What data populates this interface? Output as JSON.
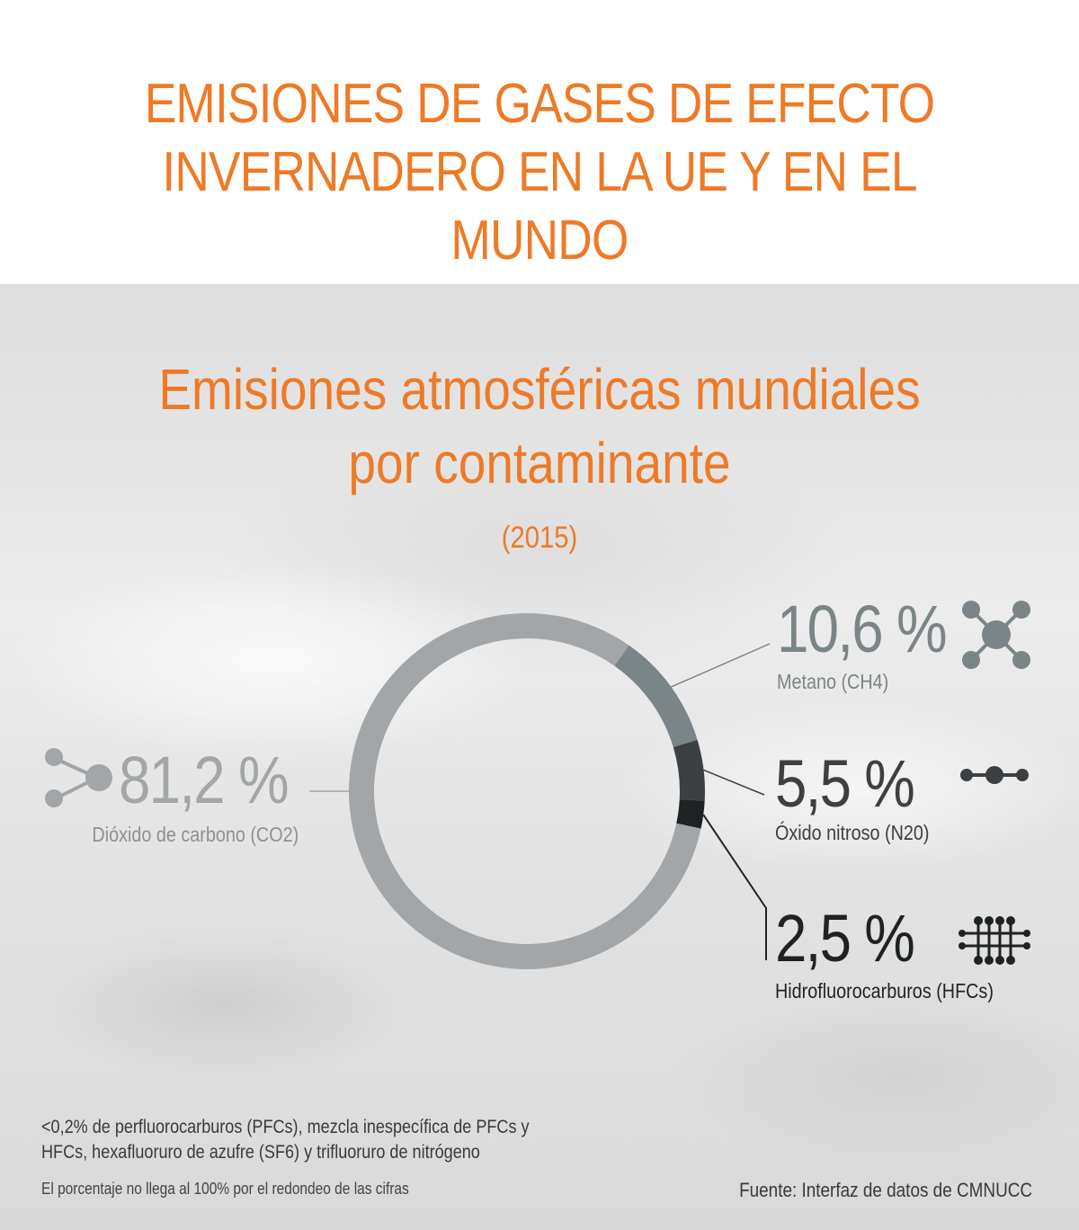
{
  "header": {
    "title_line1": "EMISIONES DE GASES DE EFECTO",
    "title_line2": "INVERNADERO EN LA UE Y EN EL MUNDO"
  },
  "colors": {
    "accent": "#ee7a27",
    "co2": "#a2a6a8",
    "ch4": "#7b8486",
    "n2o": "#3d4042",
    "hfc": "#1f2223"
  },
  "chart_data": {
    "type": "pie",
    "title": "Emisiones atmosféricas mundiales por contaminante",
    "title_line1": "Emisiones atmosféricas mundiales",
    "title_line2": "por contaminante",
    "subtitle": "(2015)",
    "series": [
      {
        "name": "Dióxido de carbono (CO2)",
        "value": 81.2,
        "label": "81,2 %",
        "color": "#a2a6a8",
        "icon": "co2-molecule-icon"
      },
      {
        "name": "Metano (CH4)",
        "value": 10.6,
        "label": "10,6 %",
        "color": "#7b8486",
        "icon": "methane-molecule-icon"
      },
      {
        "name": "Óxido nitroso (N20)",
        "value": 5.5,
        "label": "5,5 %",
        "color": "#3d4042",
        "icon": "nitrous-oxide-molecule-icon"
      },
      {
        "name": "Hidrofluorocarburos (HFCs)",
        "value": 2.5,
        "label": "2,5 %",
        "color": "#1f2223",
        "icon": "hfc-molecule-icon"
      }
    ]
  },
  "notes": {
    "line1": "<0,2%  de perfluorocarburos (PFCs), mezcla inespecífica de PFCs y",
    "line2": "HFCs, hexafluoruro de azufre (SF6) y trifluoruro de nitrógeno",
    "rounding": "El porcentaje no llega al 100% por el redondeo de las cifras"
  },
  "source": "Fuente: Interfaz de datos de CMNUCC"
}
